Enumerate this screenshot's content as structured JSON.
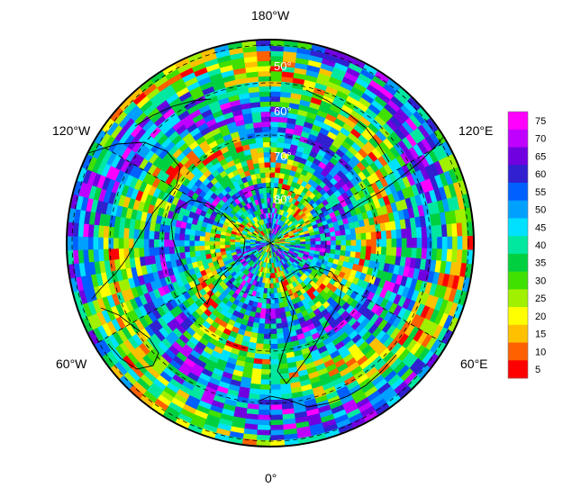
{
  "map": {
    "projection": "north-polar-stereographic",
    "longitude_labels": {
      "top": "180°W",
      "upper_left": "120°W",
      "upper_right": "120°E",
      "lower_left": "60°W",
      "lower_right": "60°E",
      "bottom": "0°"
    },
    "latitude_labels": [
      "50°",
      "60°",
      "70°",
      "80°"
    ]
  },
  "colorbar": {
    "ticks": [
      "75",
      "70",
      "65",
      "60",
      "55",
      "50",
      "45",
      "40",
      "35",
      "30",
      "25",
      "20",
      "15",
      "10",
      "5"
    ],
    "colors": [
      "#ff00ff",
      "#c000ff",
      "#7000e0",
      "#3020d0",
      "#0060ff",
      "#00a0ff",
      "#00e0ff",
      "#00e8a0",
      "#00d040",
      "#40e000",
      "#a0f000",
      "#ffff00",
      "#ffc000",
      "#ff6000",
      "#ff0000"
    ]
  }
}
